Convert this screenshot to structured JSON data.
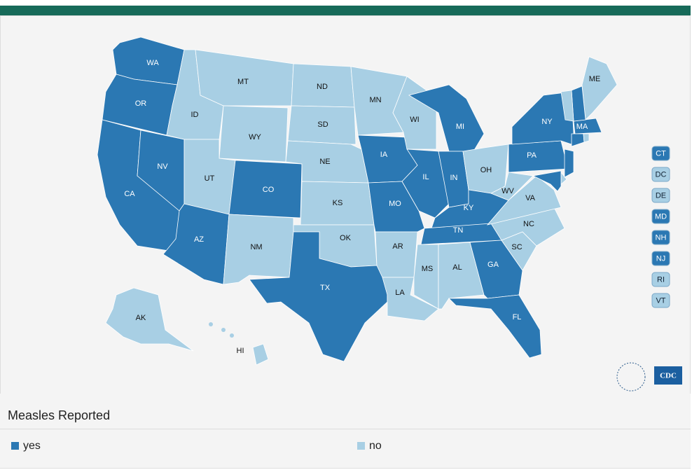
{
  "map": {
    "states": [
      {
        "abbr": "WA",
        "reported": true
      },
      {
        "abbr": "OR",
        "reported": true
      },
      {
        "abbr": "CA",
        "reported": true
      },
      {
        "abbr": "NV",
        "reported": true
      },
      {
        "abbr": "ID",
        "reported": false
      },
      {
        "abbr": "MT",
        "reported": false
      },
      {
        "abbr": "WY",
        "reported": false
      },
      {
        "abbr": "UT",
        "reported": false
      },
      {
        "abbr": "CO",
        "reported": true
      },
      {
        "abbr": "AZ",
        "reported": true
      },
      {
        "abbr": "NM",
        "reported": false
      },
      {
        "abbr": "ND",
        "reported": false
      },
      {
        "abbr": "SD",
        "reported": false
      },
      {
        "abbr": "NE",
        "reported": false
      },
      {
        "abbr": "KS",
        "reported": false
      },
      {
        "abbr": "OK",
        "reported": false
      },
      {
        "abbr": "TX",
        "reported": true
      },
      {
        "abbr": "MN",
        "reported": false
      },
      {
        "abbr": "IA",
        "reported": true
      },
      {
        "abbr": "MO",
        "reported": true
      },
      {
        "abbr": "AR",
        "reported": false
      },
      {
        "abbr": "LA",
        "reported": false
      },
      {
        "abbr": "WI",
        "reported": false
      },
      {
        "abbr": "IL",
        "reported": true
      },
      {
        "abbr": "MI",
        "reported": true
      },
      {
        "abbr": "IN",
        "reported": true
      },
      {
        "abbr": "OH",
        "reported": false
      },
      {
        "abbr": "KY",
        "reported": true
      },
      {
        "abbr": "TN",
        "reported": true
      },
      {
        "abbr": "MS",
        "reported": false
      },
      {
        "abbr": "AL",
        "reported": false
      },
      {
        "abbr": "GA",
        "reported": true
      },
      {
        "abbr": "FL",
        "reported": true
      },
      {
        "abbr": "SC",
        "reported": false
      },
      {
        "abbr": "NC",
        "reported": false
      },
      {
        "abbr": "VA",
        "reported": false
      },
      {
        "abbr": "WV",
        "reported": false
      },
      {
        "abbr": "PA",
        "reported": true
      },
      {
        "abbr": "NY",
        "reported": true
      },
      {
        "abbr": "ME",
        "reported": false
      },
      {
        "abbr": "MA",
        "reported": true
      },
      {
        "abbr": "AK",
        "reported": false
      },
      {
        "abbr": "HI",
        "reported": false
      }
    ],
    "small_states": [
      {
        "abbr": "CT",
        "reported": true
      },
      {
        "abbr": "DC",
        "reported": false
      },
      {
        "abbr": "DE",
        "reported": false
      },
      {
        "abbr": "MD",
        "reported": true
      },
      {
        "abbr": "NH",
        "reported": true
      },
      {
        "abbr": "NJ",
        "reported": true
      },
      {
        "abbr": "RI",
        "reported": false
      },
      {
        "abbr": "VT",
        "reported": false
      }
    ],
    "logo": "CDC"
  },
  "legend": {
    "title": "Measles Reported",
    "items": [
      {
        "label": "yes",
        "color": "#2b78b3"
      },
      {
        "label": "no",
        "color": "#a8cfe4"
      }
    ]
  }
}
